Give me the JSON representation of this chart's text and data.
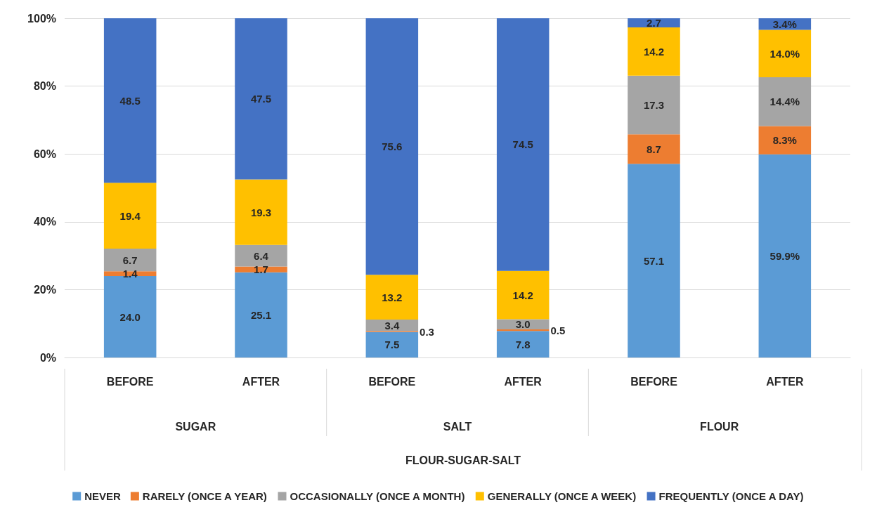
{
  "chart_data": {
    "type": "bar",
    "stacked": true,
    "categories": [
      "BEFORE",
      "AFTER",
      "BEFORE",
      "AFTER",
      "BEFORE",
      "AFTER"
    ],
    "annotations": [
      "SUGAR",
      "SALT",
      "FLOUR",
      "FLOUR-SUGAR-SALT"
    ],
    "series": [
      {
        "name": "NEVER",
        "color": "#5b9bd5",
        "values": [
          24.0,
          25.1,
          7.5,
          7.8,
          57.1,
          59.9
        ],
        "value_labels": [
          "24.0",
          "25.1",
          "7.5",
          "7.8",
          "57.1",
          "59.9%"
        ]
      },
      {
        "name": "RARELY (ONCE A YEAR)",
        "color": "#ed7d31",
        "values": [
          1.4,
          1.7,
          0.3,
          0.5,
          8.7,
          8.3
        ],
        "value_labels": [
          "1.4",
          "1.7",
          "0.3",
          "0.5",
          "8.7",
          "8.3%"
        ]
      },
      {
        "name": "OCCASIONALLY (ONCE A MONTH)",
        "color": "#a5a5a5",
        "values": [
          6.7,
          6.4,
          3.4,
          3.0,
          17.3,
          14.4
        ],
        "value_labels": [
          "6.7",
          "6.4",
          "3.4",
          "3.0",
          "17.3",
          "14.4%"
        ]
      },
      {
        "name": "GENERALLY (ONCE A WEEK)",
        "color": "#ffc000",
        "values": [
          19.4,
          19.3,
          13.2,
          14.2,
          14.2,
          14.0
        ],
        "value_labels": [
          "19.4",
          "19.3",
          "13.2",
          "14.2",
          "14.2",
          "14.0%"
        ]
      },
      {
        "name": "FREQUENTLY (ONCE A DAY)",
        "color": "#4472c4",
        "values": [
          48.5,
          47.5,
          75.6,
          74.5,
          2.7,
          3.4
        ],
        "value_labels": [
          "48.5",
          "47.5",
          "75.6",
          "74.5",
          "2.7",
          "3.4%"
        ]
      }
    ],
    "ylim": [
      0,
      100
    ],
    "yticks": [
      {
        "value": 0,
        "label": "0%"
      },
      {
        "value": 20,
        "label": "20%"
      },
      {
        "value": 40,
        "label": "40%"
      },
      {
        "value": 60,
        "label": "60%"
      },
      {
        "value": 80,
        "label": "80%"
      },
      {
        "value": 100,
        "label": "100%"
      }
    ],
    "grid": "y",
    "legend": "bottom"
  }
}
